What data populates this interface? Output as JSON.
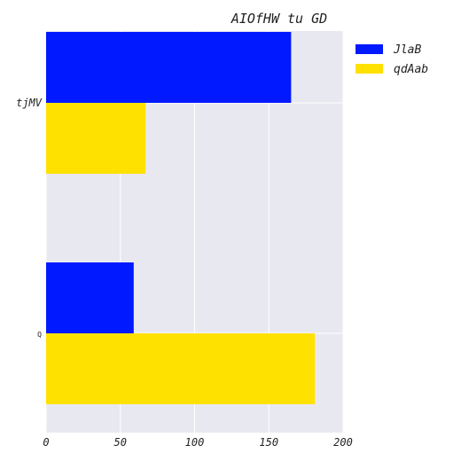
{
  "chart_data": {
    "type": "bar",
    "orientation": "horizontal",
    "title": "AIOfHW  tu  GD",
    "xlabel": "",
    "ylabel": "",
    "categories": [
      "tjMV",
      "Q"
    ],
    "series": [
      {
        "name": "JlaB",
        "values": [
          165,
          59
        ],
        "color": "#0019ff"
      },
      {
        "name": "qdAab",
        "values": [
          67,
          181
        ],
        "color": "#ffe100"
      }
    ],
    "xlim": [
      0,
      200
    ],
    "xticks": [
      "0",
      "50",
      "100",
      "150",
      "200"
    ],
    "grid": true,
    "plot_background": "#e8e8f1",
    "legend_position": "top-right, outside plot"
  }
}
